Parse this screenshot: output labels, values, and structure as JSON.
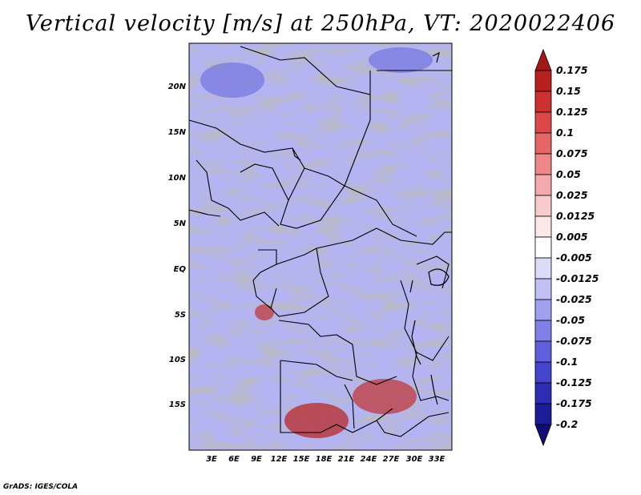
{
  "title": "Vertical velocity [m/s] at 250hPa, VT: 2020022406",
  "footer": "GrADS: IGES/COLA",
  "map": {
    "variable": "Vertical velocity",
    "units": "m/s",
    "level": "250hPa",
    "valid_time": "2020022406",
    "region": "Central and Southern Africa",
    "lat_range": [
      -19,
      24
    ],
    "lon_range": [
      0,
      35
    ],
    "lat_ticks": [
      "20N",
      "15N",
      "10N",
      "5N",
      "EQ",
      "5S",
      "10S",
      "15S"
    ],
    "lon_ticks": [
      "3E",
      "6E",
      "9E",
      "12E",
      "15E",
      "18E",
      "21E",
      "24E",
      "27E",
      "30E",
      "33E"
    ]
  },
  "colorbar": {
    "labels": [
      "0.175",
      "0.15",
      "0.125",
      "0.1",
      "0.075",
      "0.05",
      "0.025",
      "0.0125",
      "0.005",
      "-0.005",
      "-0.0125",
      "-0.025",
      "-0.05",
      "-0.075",
      "-0.1",
      "-0.125",
      "-0.175",
      "-0.2"
    ],
    "colors": [
      "#a01818",
      "#b82020",
      "#cc3030",
      "#dc4848",
      "#e66666",
      "#ee8888",
      "#f4aaaa",
      "#f8cccc",
      "#fce8e8",
      "#ffffff",
      "#dcdcfa",
      "#c0c0f6",
      "#a0a0f0",
      "#8080e8",
      "#6060dc",
      "#4444cc",
      "#2c2cb4",
      "#1c1c96",
      "#120c78"
    ]
  }
}
